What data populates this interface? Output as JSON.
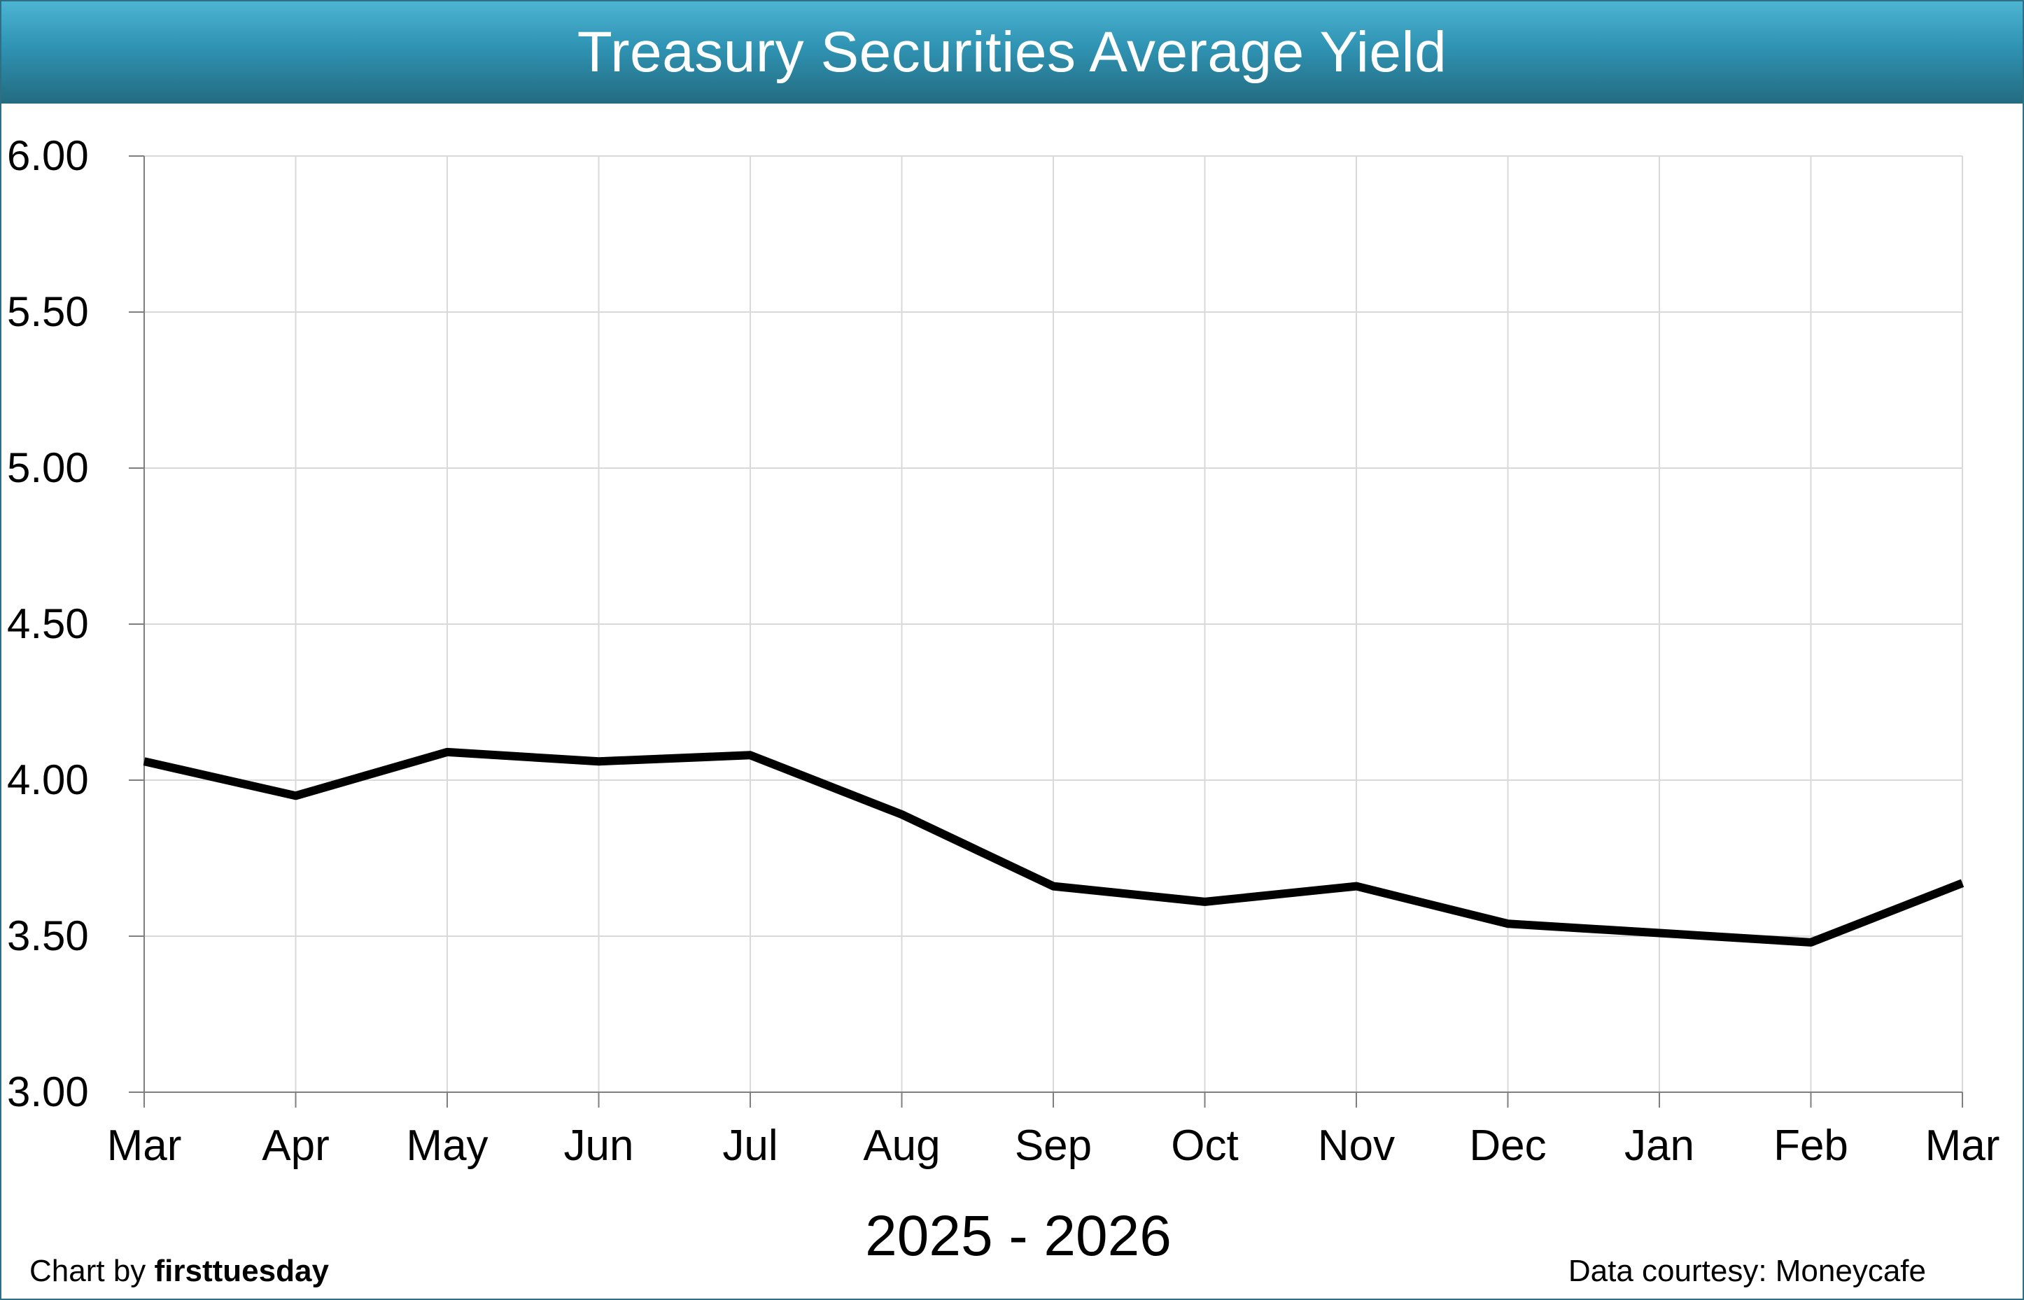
{
  "header": {
    "title": "Treasury Securities Average Yield"
  },
  "footer": {
    "credit_prefix": "Chart by",
    "credit_name": "firsttuesday",
    "data_source": "Data courtesy: Moneycafe"
  },
  "colors": {
    "header_top": "#4db4d2",
    "header_bottom": "#236b80",
    "line": "#000000",
    "grid": "#d9d9d9"
  },
  "chart_data": {
    "type": "line",
    "title": "Treasury Securities Average Yield",
    "xlabel": "2025 - 2026",
    "ylabel": "",
    "categories": [
      "Mar",
      "Apr",
      "May",
      "Jun",
      "Jul",
      "Aug",
      "Sep",
      "Oct",
      "Nov",
      "Dec",
      "Jan",
      "Feb",
      "Mar"
    ],
    "series": [
      {
        "values": [
          4.06,
          3.95,
          4.09,
          4.06,
          4.08,
          3.89,
          3.66,
          3.61,
          3.66,
          3.54,
          3.51,
          3.48,
          3.67
        ]
      }
    ],
    "ylim": [
      3.0,
      6.0
    ],
    "yticks": [
      "3.00",
      "3.50",
      "4.00",
      "4.50",
      "5.00",
      "5.50",
      "6.00"
    ],
    "grid": true,
    "legend": "none"
  }
}
